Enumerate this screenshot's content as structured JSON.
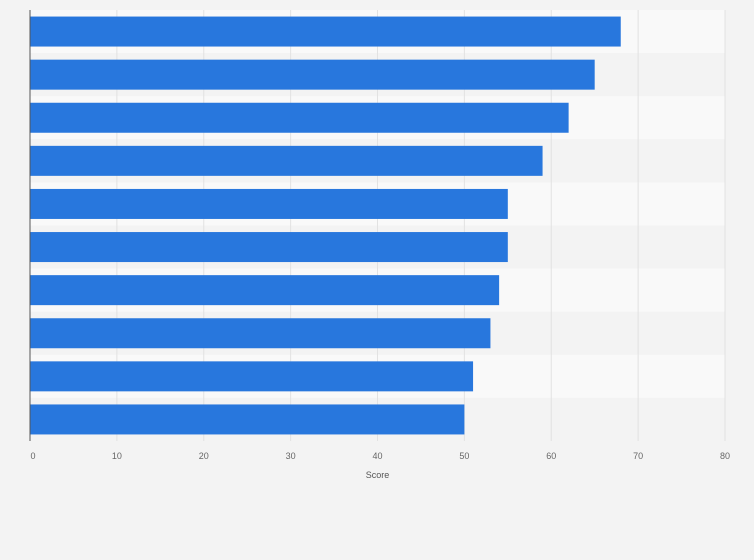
{
  "chart_data": {
    "type": "bar",
    "orientation": "horizontal",
    "categories": [
      "",
      "",
      "",
      "",
      "",
      "",
      "",
      "",
      "",
      ""
    ],
    "values": [
      68,
      65,
      62,
      59,
      55,
      55,
      54,
      53,
      51,
      50
    ],
    "xlabel": "Score",
    "ylabel": "",
    "xlim": [
      0,
      80
    ],
    "ticks": [
      0,
      10,
      20,
      30,
      40,
      50,
      60,
      70,
      80
    ],
    "tick_labels": [
      "0",
      "10",
      "20",
      "30",
      "40",
      "50",
      "60",
      "70",
      "80"
    ],
    "grid": true,
    "legend": "none",
    "colors": {
      "bar": "#2877dd",
      "page_background": "#f3f3f3",
      "band_light": "#f9f9f9",
      "band_dark": "#f3f3f3",
      "gridline": "#e2e2e2",
      "axis": "#555555"
    }
  }
}
